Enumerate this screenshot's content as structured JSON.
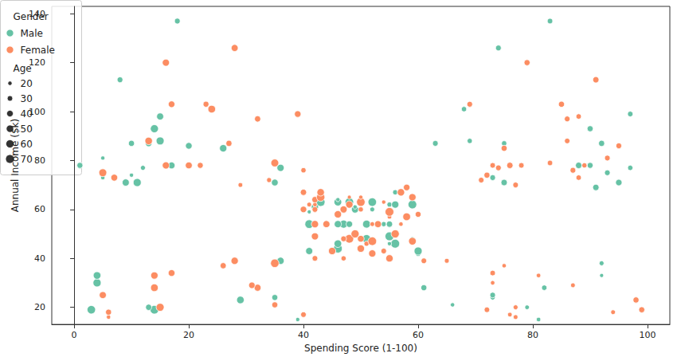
{
  "chart_data": {
    "type": "scatter",
    "x_label": "Spending Score (1-100)",
    "y_label": "Annual Income ($k)",
    "xlim": [
      -3.9,
      103.9
    ],
    "ylim": [
      13,
      143
    ],
    "xticks": [
      0,
      20,
      40,
      60,
      80,
      100
    ],
    "yticks": [
      20,
      40,
      60,
      80,
      100,
      120,
      140
    ],
    "grid": false,
    "legend": "top",
    "legend_title": "Gender",
    "size_legend": {
      "title": "Age",
      "values": [
        20,
        30,
        40,
        50,
        60,
        70
      ]
    },
    "series": [
      {
        "name": "Male",
        "color": "#66c2a5",
        "x": [
          39,
          81,
          3,
          14,
          13,
          79,
          66,
          29,
          35,
          73,
          73,
          82,
          61,
          4,
          4,
          92,
          92,
          36,
          60,
          60,
          41,
          46,
          46,
          56,
          55,
          51,
          59,
          59,
          55,
          47,
          54,
          48,
          51,
          55,
          41,
          46,
          41,
          49,
          52,
          42,
          49,
          59,
          55,
          56,
          46,
          43,
          48,
          52,
          46,
          56,
          91,
          35,
          95,
          11,
          75,
          9,
          75,
          5,
          73,
          10,
          93,
          12,
          97,
          36,
          90,
          17,
          88,
          1,
          1,
          5,
          26,
          20,
          63,
          13,
          75,
          10,
          92,
          15,
          69,
          14,
          90,
          15,
          97,
          68,
          8,
          74,
          18,
          83
        ],
        "y": [
          15,
          15,
          19,
          19,
          20,
          20,
          21,
          23,
          24,
          24,
          25,
          28,
          28,
          30,
          33,
          33,
          38,
          39,
          42,
          43,
          43,
          44,
          46,
          46,
          46,
          48,
          48,
          48,
          49,
          54,
          54,
          54,
          54,
          54,
          54,
          54,
          59,
          60,
          60,
          61,
          61,
          62,
          62,
          62,
          63,
          63,
          63,
          63,
          64,
          67,
          69,
          71,
          71,
          71,
          71,
          71,
          71,
          73,
          73,
          74,
          75,
          77,
          77,
          77,
          78,
          78,
          78,
          78,
          78,
          81,
          85,
          86,
          87,
          87,
          87,
          87,
          87,
          88,
          88,
          93,
          93,
          98,
          99,
          101,
          113,
          126,
          137,
          137
        ],
        "age": [
          19,
          21,
          64,
          67,
          37,
          22,
          20,
          52,
          35,
          25,
          31,
          29,
          35,
          60,
          53,
          18,
          24,
          48,
          33,
          59,
          47,
          69,
          53,
          70,
          19,
          63,
          18,
          19,
          70,
          59,
          26,
          40,
          57,
          38,
          67,
          48,
          18,
          48,
          24,
          48,
          20,
          67,
          26,
          49,
          54,
          68,
          66,
          65,
          19,
          27,
          39,
          43,
          40,
          59,
          38,
          47,
          39,
          20,
          32,
          19,
          32,
          25,
          28,
          48,
          34,
          43,
          39,
          37,
          34,
          19,
          50,
          42,
          32,
          40,
          28,
          36,
          36,
          58,
          27,
          59,
          35,
          46,
          30,
          28,
          33,
          32,
          32,
          30
        ]
      },
      {
        "name": "Female",
        "color": "#fc8d62",
        "x": [
          6,
          77,
          40,
          76,
          6,
          94,
          72,
          99,
          15,
          77,
          35,
          98,
          5,
          14,
          32,
          31,
          87,
          73,
          14,
          81,
          17,
          73,
          26,
          75,
          35,
          61,
          28,
          65,
          55,
          47,
          42,
          42,
          52,
          54,
          45,
          50,
          51,
          52,
          59,
          50,
          48,
          47,
          42,
          49,
          56,
          53,
          52,
          42,
          44,
          57,
          58,
          55,
          60,
          46,
          55,
          40,
          42,
          47,
          50,
          41,
          48,
          42,
          50,
          54,
          42,
          48,
          50,
          43,
          59,
          43,
          57,
          40,
          58,
          29,
          77,
          34,
          71,
          88,
          7,
          72,
          5,
          40,
          87,
          74,
          22,
          20,
          76,
          16,
          89,
          78,
          73,
          35,
          83,
          93,
          75,
          95,
          27,
          13,
          86,
          32,
          86,
          88,
          39,
          24,
          17,
          85,
          23,
          69,
          91,
          16,
          79,
          28
        ],
        "y": [
          16,
          16,
          17,
          17,
          18,
          18,
          19,
          19,
          20,
          20,
          21,
          23,
          25,
          28,
          28,
          29,
          29,
          30,
          33,
          33,
          34,
          34,
          37,
          37,
          38,
          39,
          39,
          39,
          40,
          40,
          40,
          40,
          42,
          43,
          43,
          44,
          46,
          47,
          47,
          48,
          48,
          48,
          49,
          50,
          50,
          54,
          54,
          54,
          54,
          54,
          57,
          57,
          58,
          58,
          59,
          60,
          60,
          60,
          60,
          62,
          62,
          62,
          63,
          63,
          64,
          65,
          65,
          65,
          65,
          67,
          67,
          67,
          69,
          70,
          70,
          72,
          72,
          73,
          73,
          74,
          75,
          76,
          76,
          77,
          78,
          78,
          78,
          78,
          78,
          78,
          78,
          79,
          79,
          81,
          85,
          86,
          87,
          88,
          88,
          97,
          97,
          98,
          99,
          101,
          103,
          103,
          103,
          103,
          113,
          120,
          120,
          126
        ],
        "age": [
          20,
          23,
          31,
          22,
          35,
          23,
          30,
          35,
          58,
          24,
          35,
          35,
          46,
          54,
          45,
          40,
          23,
          21,
          49,
          21,
          42,
          30,
          36,
          20,
          65,
          31,
          49,
          24,
          50,
          27,
          29,
          31,
          49,
          31,
          50,
          51,
          27,
          67,
          54,
          43,
          68,
          32,
          47,
          60,
          60,
          45,
          23,
          49,
          46,
          21,
          55,
          22,
          34,
          50,
          68,
          40,
          32,
          47,
          27,
          23,
          49,
          21,
          66,
          19,
          38,
          18,
          19,
          63,
          49,
          51,
          50,
          38,
          40,
          23,
          31,
          25,
          31,
          29,
          44,
          35,
          57,
          28,
          32,
          32,
          34,
          44,
          38,
          47,
          27,
          30,
          30,
          56,
          29,
          31,
          36,
          33,
          36,
          52,
          30,
          37,
          32,
          29,
          41,
          54,
          41,
          36,
          34,
          32,
          38,
          47,
          35,
          45
        ]
      }
    ]
  }
}
